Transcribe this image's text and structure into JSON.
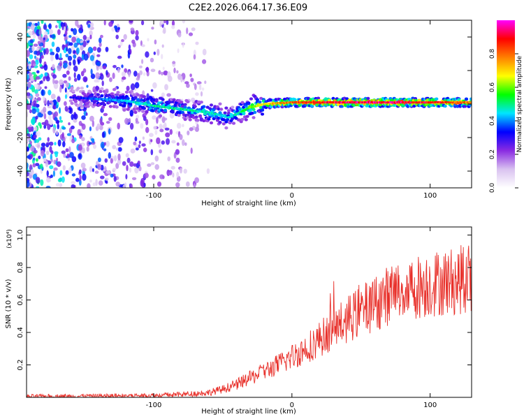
{
  "chart_data": [
    {
      "type": "heatmap",
      "title": "C2E2.2026.064.17.36.E09",
      "xlabel": "Height of straight line (km)",
      "ylabel": "Frequency (Hz)",
      "xlim": [
        -192,
        130
      ],
      "ylim": [
        -50,
        50
      ],
      "xticks": [
        -100,
        0,
        100
      ],
      "yticks": [
        -40,
        -20,
        0,
        20,
        40
      ],
      "colorbar": {
        "label": "Normalized spectral amplitude",
        "range": [
          0,
          1
        ],
        "ticks": [
          "0.0",
          "0.2",
          "0.4",
          "0.6",
          "0.8"
        ],
        "colormap": [
          "#ffffff",
          "#d9c2f0",
          "#8a2be2",
          "#0000ff",
          "#00e5ff",
          "#00ff00",
          "#ffff00",
          "#ff8000",
          "#ff0000",
          "#ff00ff"
        ]
      },
      "ridge": {
        "x": [
          -160,
          -140,
          -120,
          -100,
          -80,
          -60,
          -45,
          -40,
          -30,
          -20,
          0,
          20,
          40,
          60,
          80,
          100,
          120,
          130
        ],
        "y": [
          4,
          3,
          2,
          -1,
          -3,
          -5,
          -8,
          -6,
          -2,
          0,
          1,
          1,
          1,
          1,
          1,
          1,
          1,
          1
        ],
        "amplitude": [
          0.3,
          0.4,
          0.45,
          0.5,
          0.5,
          0.5,
          0.45,
          0.5,
          0.6,
          0.7,
          0.85,
          0.9,
          0.95,
          0.95,
          0.95,
          0.9,
          0.85,
          0.8
        ]
      },
      "noise_region": {
        "x": [
          -192,
          -60
        ],
        "y": [
          -50,
          50
        ]
      }
    },
    {
      "type": "line",
      "xlabel": "Height of straight line (km)",
      "ylabel": "SNR (10 * v/v)",
      "multiplier": "(x10⁴)",
      "xlim": [
        -192,
        130
      ],
      "ylim": [
        0,
        1.05
      ],
      "xticks": [
        -100,
        0,
        100
      ],
      "yticks": [
        0.2,
        0.4,
        0.6,
        0.8,
        1.0
      ],
      "color": "#e8302a",
      "series": [
        {
          "name": "SNR",
          "x": [
            -192,
            -150,
            -100,
            -80,
            -60,
            -50,
            -40,
            -30,
            -20,
            -10,
            0,
            10,
            20,
            30,
            40,
            50,
            60,
            70,
            80,
            90,
            100,
            110,
            120,
            130
          ],
          "y": [
            0.005,
            0.008,
            0.012,
            0.018,
            0.03,
            0.05,
            0.08,
            0.12,
            0.16,
            0.2,
            0.25,
            0.3,
            0.36,
            0.42,
            0.48,
            0.53,
            0.58,
            0.63,
            0.66,
            0.68,
            0.7,
            0.71,
            0.72,
            0.74
          ]
        }
      ]
    }
  ]
}
